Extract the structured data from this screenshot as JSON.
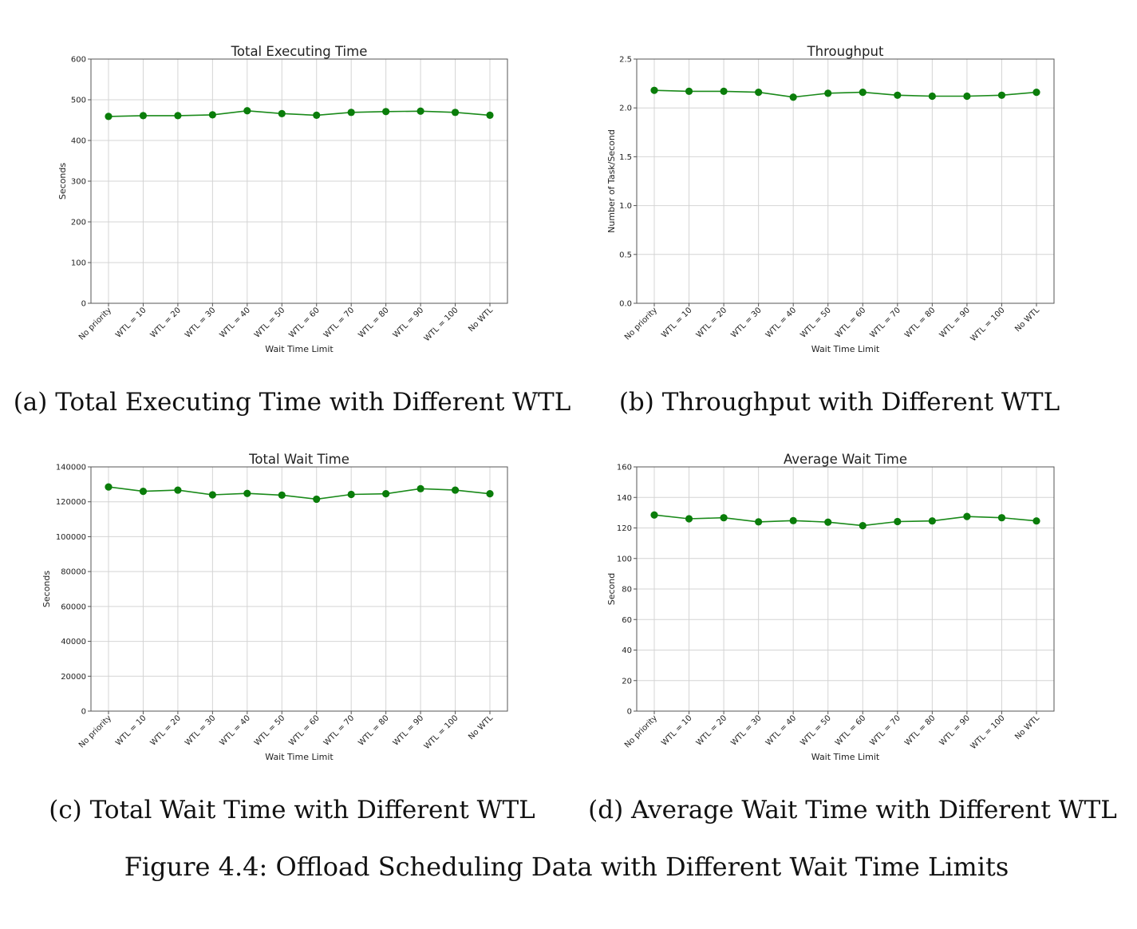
{
  "figure_caption": "Figure 4.4: Offload Scheduling Data with Different Wait Time Limits",
  "colors": {
    "line": "#1a8a1a",
    "marker": "#0a7d0a",
    "grid": "#d4d4d4",
    "axis": "#555555"
  },
  "chart_data": [
    {
      "type": "line",
      "title": "Total Executing Time",
      "caption": "(a) Total Executing Time with Different WTL",
      "xlabel": "Wait Time Limit",
      "ylabel": "Seconds",
      "categories": [
        "No priority",
        "WTL = 10",
        "WTL = 20",
        "WTL = 30",
        "WTL = 40",
        "WTL = 50",
        "WTL = 60",
        "WTL = 70",
        "WTL = 80",
        "WTL = 90",
        "WTL = 100",
        "No WTL"
      ],
      "values": [
        459,
        461,
        461,
        463,
        473,
        466,
        462,
        469,
        471,
        472,
        469,
        462
      ],
      "ylim": [
        0,
        600
      ],
      "yticks": [
        "0",
        "100",
        "200",
        "300",
        "400",
        "500",
        "600"
      ],
      "grid": true
    },
    {
      "type": "line",
      "title": "Throughput",
      "caption": "(b) Throughput with Different WTL",
      "xlabel": "Wait Time Limit",
      "ylabel": "Number of Task/Second",
      "categories": [
        "No priority",
        "WTL = 10",
        "WTL = 20",
        "WTL = 30",
        "WTL = 40",
        "WTL = 50",
        "WTL = 60",
        "WTL = 70",
        "WTL = 80",
        "WTL = 90",
        "WTL = 100",
        "No WTL"
      ],
      "values": [
        2.18,
        2.17,
        2.17,
        2.16,
        2.11,
        2.15,
        2.16,
        2.13,
        2.12,
        2.12,
        2.13,
        2.16
      ],
      "ylim": [
        0,
        2.5
      ],
      "yticks": [
        "0.0",
        "0.5",
        "1.0",
        "1.5",
        "2.0",
        "2.5"
      ],
      "grid": true
    },
    {
      "type": "line",
      "title": "Total Wait Time",
      "caption": "(c) Total Wait Time with Different WTL",
      "xlabel": "Wait Time Limit",
      "ylabel": "Seconds",
      "categories": [
        "No priority",
        "WTL = 10",
        "WTL = 20",
        "WTL = 30",
        "WTL = 40",
        "WTL = 50",
        "WTL = 60",
        "WTL = 70",
        "WTL = 80",
        "WTL = 90",
        "WTL = 100",
        "No WTL"
      ],
      "values": [
        128500,
        126000,
        126700,
        124000,
        124800,
        123800,
        121500,
        124200,
        124600,
        127500,
        126700,
        124600
      ],
      "ylim": [
        0,
        140000
      ],
      "yticks": [
        "0",
        "20000",
        "40000",
        "60000",
        "80000",
        "100000",
        "120000",
        "140000"
      ],
      "grid": true
    },
    {
      "type": "line",
      "title": "Average Wait Time",
      "caption": "(d) Average Wait Time with Different WTL",
      "xlabel": "Wait Time Limit",
      "ylabel": "Second",
      "categories": [
        "No priority",
        "WTL = 10",
        "WTL = 20",
        "WTL = 30",
        "WTL = 40",
        "WTL = 50",
        "WTL = 60",
        "WTL = 70",
        "WTL = 80",
        "WTL = 90",
        "WTL = 100",
        "No WTL"
      ],
      "values": [
        128.5,
        126.0,
        126.7,
        124.0,
        124.8,
        123.8,
        121.5,
        124.2,
        124.6,
        127.5,
        126.7,
        124.6
      ],
      "ylim": [
        0,
        160
      ],
      "yticks": [
        "0",
        "20",
        "40",
        "60",
        "80",
        "100",
        "120",
        "140",
        "160"
      ],
      "grid": true
    }
  ]
}
